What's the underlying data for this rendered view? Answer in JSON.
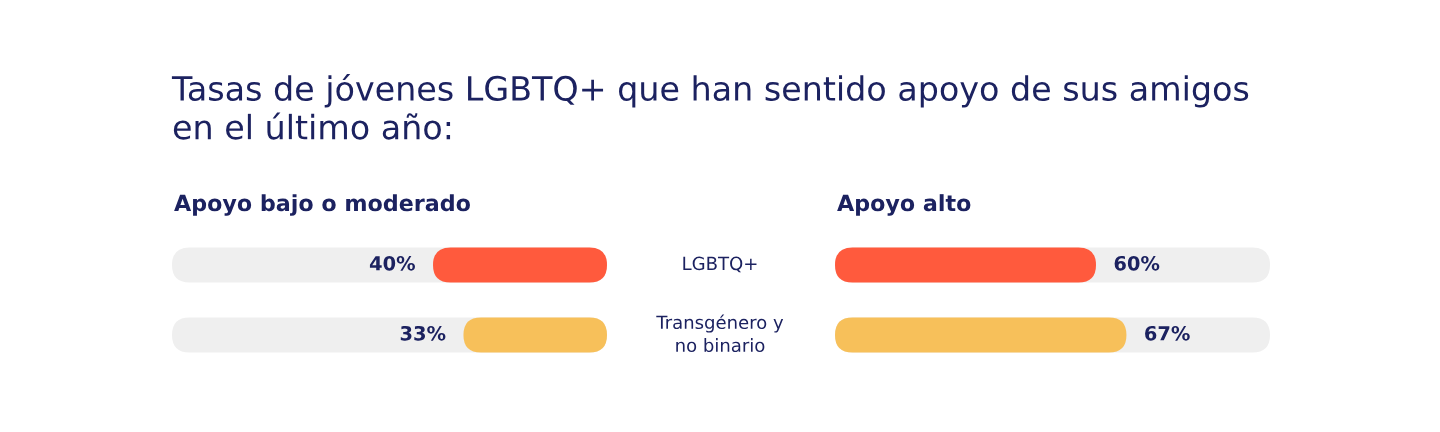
{
  "chart_data": [
    {
      "type": "bar",
      "orientation": "horizontal",
      "title": "Tasas de jóvenes LGBTQ+ que han sentido apoyo de sus amigos\nen el último año:",
      "subtitle": "Apoyo bajo o moderado",
      "categories": [
        "LGBTQ+",
        "Transgénero y\nno binario"
      ],
      "values": [
        40,
        33
      ],
      "colors": [
        "#ff5a3d",
        "#f7c05a"
      ],
      "value_labels": [
        "40%",
        "33%"
      ],
      "xlim": [
        100,
        0
      ],
      "tick_labels": "y"
    },
    {
      "type": "bar",
      "orientation": "horizontal",
      "subtitle": "Apoyo alto",
      "categories": [
        null,
        null
      ],
      "values": [
        60,
        67
      ],
      "colors": [
        "#ff5a3d",
        "#f7c05a"
      ],
      "value_labels": [
        "60%",
        "67%"
      ],
      "xlim": [
        0,
        100
      ]
    }
  ]
}
